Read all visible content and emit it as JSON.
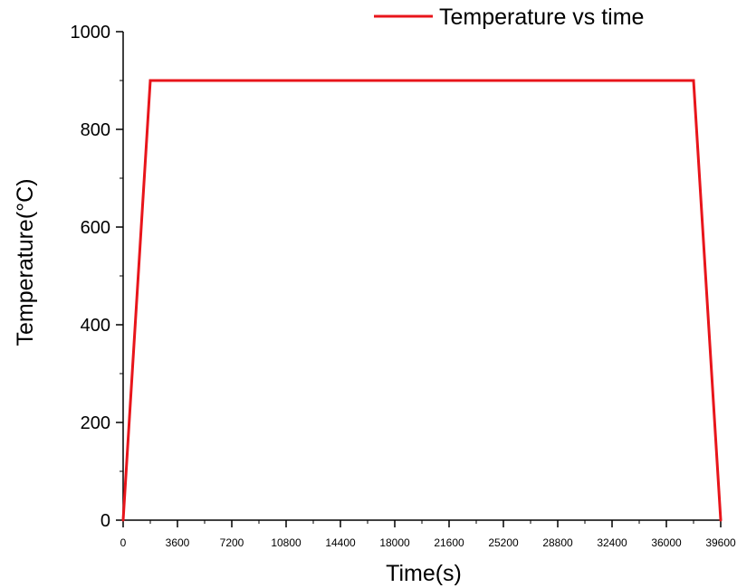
{
  "chart_data": {
    "type": "line",
    "title": "",
    "xlabel": "Time(s)",
    "ylabel": "Temperature(°C)",
    "xlim": [
      0,
      39600
    ],
    "ylim": [
      0,
      1000
    ],
    "x_ticks": [
      0,
      3600,
      7200,
      10800,
      14400,
      18000,
      21600,
      25200,
      28800,
      32400,
      36000,
      39600
    ],
    "y_ticks": [
      0,
      200,
      400,
      600,
      800,
      1000
    ],
    "grid": false,
    "legend_position": "top-right",
    "series": [
      {
        "name": "Temperature vs time",
        "color": "#e8151b",
        "points": [
          {
            "x": 0,
            "y": 0
          },
          {
            "x": 1800,
            "y": 900
          },
          {
            "x": 37800,
            "y": 900
          },
          {
            "x": 39600,
            "y": 0
          }
        ]
      }
    ]
  }
}
